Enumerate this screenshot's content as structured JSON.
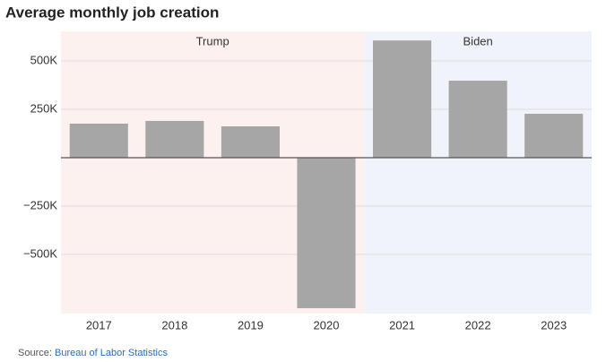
{
  "chart_data": {
    "type": "bar",
    "title": "Average monthly job creation",
    "categories": [
      "2017",
      "2018",
      "2019",
      "2020",
      "2021",
      "2022",
      "2023"
    ],
    "values": [
      176000,
      190000,
      162000,
      -778000,
      606000,
      398000,
      227000
    ],
    "color": "#a6a6a6",
    "ylim": [
      -806000,
      653000
    ],
    "yticks": [
      {
        "value": -500000,
        "label": "−500K"
      },
      {
        "value": -250000,
        "label": "−250K"
      },
      {
        "value": 250000,
        "label": "250K"
      },
      {
        "value": 500000,
        "label": "500K"
      }
    ],
    "grid": true,
    "eras": [
      {
        "label": "Trump",
        "color": "#fdf1f0",
        "first": "2017",
        "last": "2020"
      },
      {
        "label": "Biden",
        "color": "#f0f4fa",
        "first": "2021",
        "last": "2023"
      }
    ],
    "source_prefix": "Source:",
    "source_link": "Bureau of Labor Statistics"
  }
}
